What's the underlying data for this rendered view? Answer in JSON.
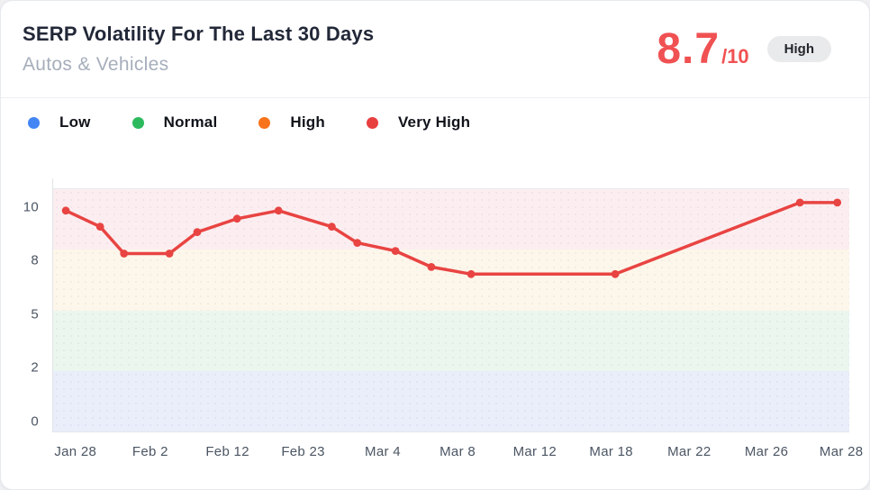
{
  "header": {
    "title": "SERP Volatility For The Last 30 Days",
    "subtitle": "Autos & Vehicles",
    "score": {
      "value": "8.7",
      "max_label": "/10",
      "status": "High"
    }
  },
  "legend": {
    "items": [
      {
        "label": "Low",
        "color": "#4285f4"
      },
      {
        "label": "Normal",
        "color": "#2dba5e"
      },
      {
        "label": "High",
        "color": "#f9731a"
      },
      {
        "label": "Very High",
        "color": "#e8403f"
      }
    ]
  },
  "chart_data": {
    "type": "line",
    "title": "SERP Volatility For The Last 30 Days",
    "line_color": "#e84442",
    "grid": false,
    "y_axis": {
      "tick_values": [
        10,
        8,
        5,
        2,
        0
      ],
      "tick_pos_pct": [
        7.7,
        29.7,
        51.5,
        73.4,
        95.6
      ],
      "note": "ticks evenly spaced (non-linear value scale)"
    },
    "x_axis": {
      "tick_labels": [
        "Jan 28",
        "Feb 2",
        "Feb 12",
        "Feb 23",
        "Mar 4",
        "Mar 8",
        "Mar 12",
        "Mar 18",
        "Mar 22",
        "Mar 26",
        "Mar 28"
      ],
      "tick_pos_pct": [
        2.8,
        12.2,
        21.9,
        31.4,
        41.4,
        50.8,
        60.5,
        70.1,
        79.9,
        89.6,
        99.0
      ]
    },
    "bands": [
      {
        "label": "Very High",
        "value_range": [
          8,
          10
        ],
        "color": "#fceef0"
      },
      {
        "label": "High",
        "value_range": [
          5,
          8
        ],
        "color": "#fdf6ea"
      },
      {
        "label": "Normal",
        "value_range": [
          2,
          5
        ],
        "color": "#ebf6ef"
      },
      {
        "label": "Low",
        "value_range": [
          0,
          2
        ],
        "color": "#e9eefa"
      }
    ],
    "points": [
      {
        "x_pct": 1.6,
        "value": 9.9
      },
      {
        "x_pct": 5.9,
        "value": 9.3
      },
      {
        "x_pct": 8.9,
        "value": 8.3
      },
      {
        "x_pct": 14.6,
        "value": 8.3
      },
      {
        "x_pct": 18.1,
        "value": 9.1
      },
      {
        "x_pct": 23.1,
        "value": 9.6
      },
      {
        "x_pct": 28.3,
        "value": 9.9
      },
      {
        "x_pct": 35.0,
        "value": 9.3
      },
      {
        "x_pct": 38.2,
        "value": 8.7
      },
      {
        "x_pct": 43.0,
        "value": 8.4
      },
      {
        "x_pct": 47.5,
        "value": 7.7
      },
      {
        "x_pct": 52.5,
        "value": 7.3
      },
      {
        "x_pct": 70.6,
        "value": 7.3
      },
      {
        "x_pct": 93.8,
        "value": 10.2
      },
      {
        "x_pct": 98.5,
        "value": 10.2
      }
    ]
  }
}
